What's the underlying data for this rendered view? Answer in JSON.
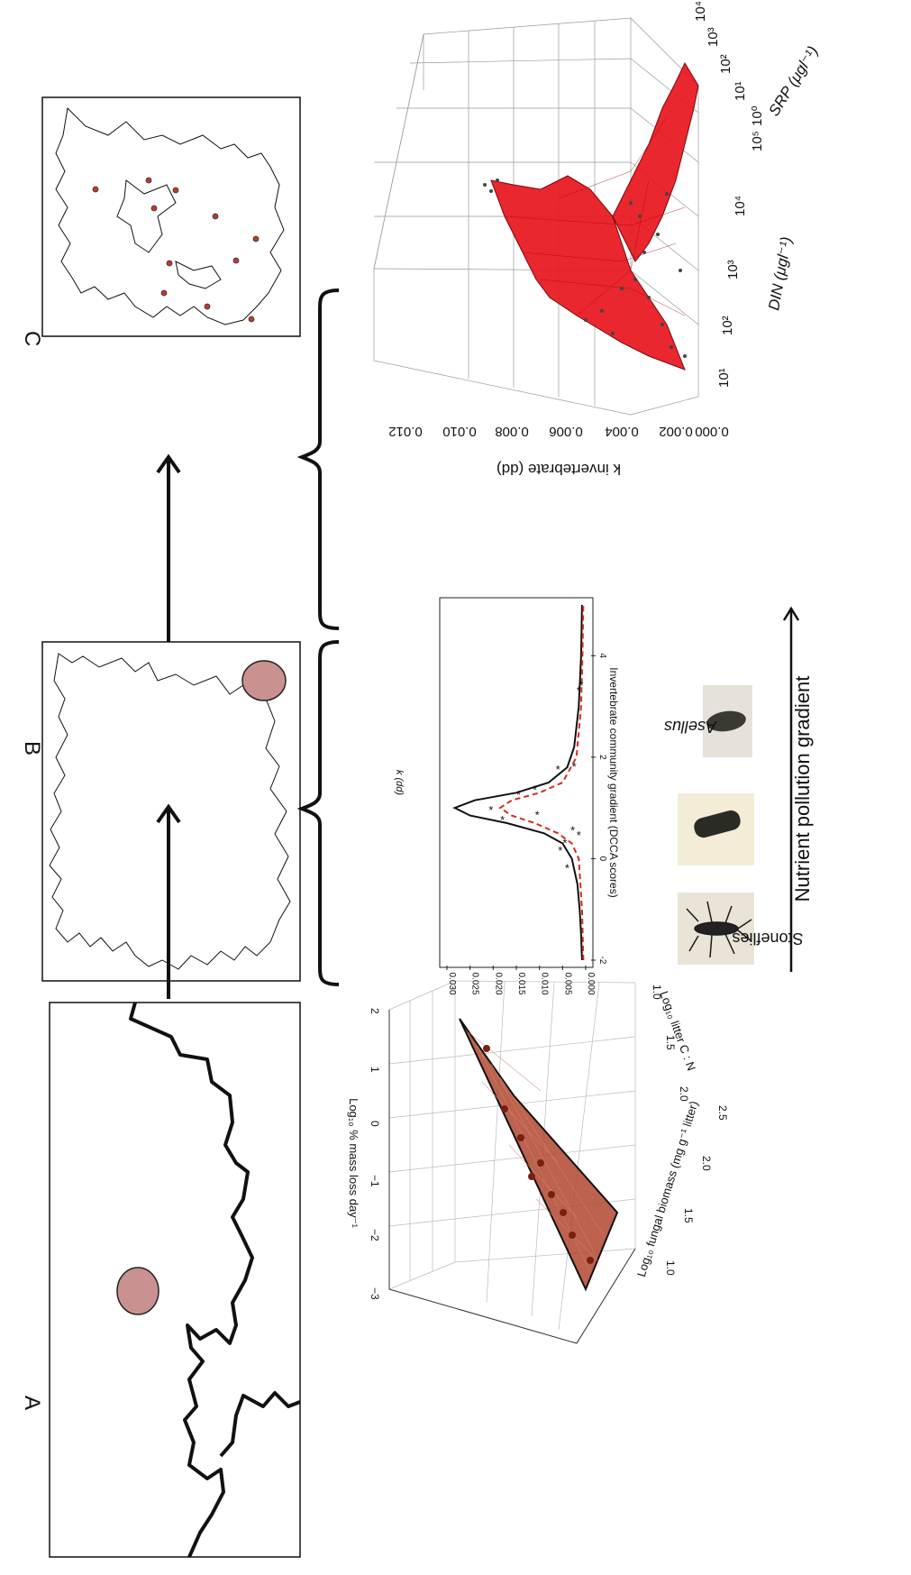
{
  "panels": [
    {
      "letter": "A"
    },
    {
      "letter": "B"
    },
    {
      "letter": "C"
    }
  ],
  "colors": {
    "site_marker": "#c9918f",
    "network_dots": "#c0392b",
    "red_surface": "#e8141c",
    "brown_plane": "#b0462f",
    "dashed_curve": "#d62d20",
    "ink": "#111111"
  },
  "caption": {
    "left_label": "Stoneflies",
    "right_label": "Asellus",
    "gradient": "Nutrient pollution gradient"
  },
  "plot_fungal": {
    "zlabel": "Log₁₀ % mass loss day⁻¹",
    "xlabel": "Log₁₀ fungal biomass (mg g⁻¹ litter)",
    "ylabel": "Log₁₀ litter C : N",
    "z_ticks": [
      "2",
      "1",
      "0",
      "−1",
      "−2",
      "−3"
    ],
    "x_ticks": [
      "1.0",
      "1.5",
      "2.0",
      "2.5"
    ],
    "y_ticks": [
      "2.0",
      "1.5",
      "1.0"
    ]
  },
  "chart_data": [
    {
      "type": "line",
      "xlabel": "Invertebrate community gradient (DCCA scores)",
      "ylabel": "k (dd)",
      "xlim": [
        -2,
        5
      ],
      "ylim": [
        0,
        0.03
      ],
      "x_ticks": [
        -2,
        0,
        2,
        4
      ],
      "y_ticks": [
        0.0,
        0.005,
        0.01,
        0.015,
        0.02,
        0.025,
        0.03
      ],
      "y_tick_labels": [
        "0.000",
        "0.005",
        "0.010",
        "0.015",
        "0.020",
        "0.025",
        "0.030"
      ],
      "series": [
        {
          "style": "solid",
          "x": [
            -2,
            -1.5,
            -1,
            -0.5,
            0,
            0.3,
            0.5,
            0.7,
            0.85,
            1.0,
            1.15,
            1.3,
            1.5,
            1.8,
            2.2,
            3,
            4,
            5
          ],
          "y": [
            0.0008,
            0.001,
            0.0013,
            0.0018,
            0.003,
            0.005,
            0.009,
            0.017,
            0.025,
            0.0283,
            0.024,
            0.015,
            0.008,
            0.004,
            0.0025,
            0.0015,
            0.001,
            0.0008
          ]
        },
        {
          "style": "dashed",
          "x": [
            -2,
            -1,
            0,
            0.3,
            0.5,
            0.7,
            0.85,
            1.0,
            1.15,
            1.3,
            1.5,
            2,
            3,
            4,
            5
          ],
          "y": [
            0.0005,
            0.0008,
            0.0015,
            0.003,
            0.006,
            0.011,
            0.016,
            0.0185,
            0.016,
            0.01,
            0.005,
            0.002,
            0.001,
            0.0007,
            0.0005
          ]
        }
      ],
      "points": {
        "x": [
          -0.2,
          0.15,
          0.3,
          0.45,
          0.55,
          0.75,
          0.85,
          0.95,
          1.25,
          1.35,
          1.75,
          1.8,
          3.3,
          3.4
        ],
        "y": [
          0.004,
          0.0055,
          0.0045,
          0.0015,
          0.0028,
          0.018,
          0.0105,
          0.0205,
          0.0145,
          0.011,
          0.006,
          0.0025,
          0.0015,
          0.001
        ]
      }
    },
    {
      "type": "surface",
      "zlabel": "k invertebrate (dd)",
      "xlabel": "DIN (μgl⁻¹)",
      "ylabel": "SRP (μgl⁻¹)",
      "z_ticks": [
        "0.000",
        "0.002",
        "0.004",
        "0.006",
        "0.008",
        "0.010",
        "0.012"
      ],
      "x_ticks": [
        "10¹",
        "10²",
        "10³",
        "10⁴",
        "10⁵"
      ],
      "y_ticks": [
        "10⁰",
        "10¹",
        "10²",
        "10³",
        "10⁴"
      ]
    }
  ]
}
